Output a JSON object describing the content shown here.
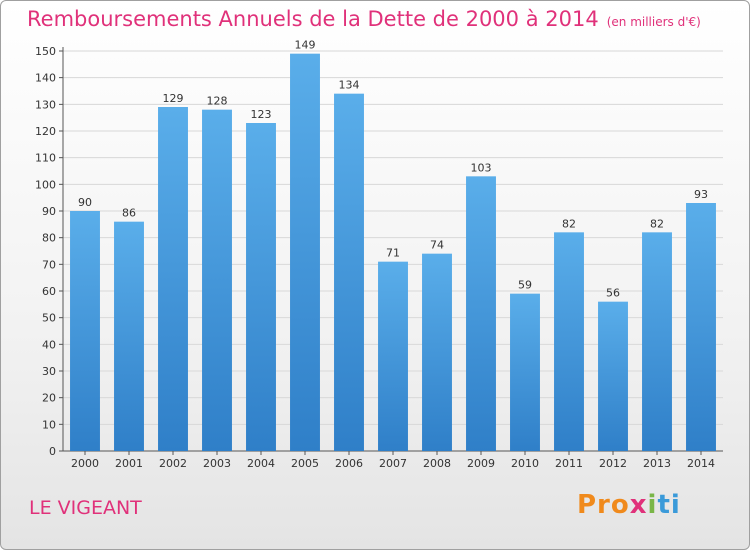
{
  "header": {
    "title": "Remboursements Annuels de la Dette de 2000 à 2014",
    "unit": "(en milliers d'€)"
  },
  "footer": {
    "commune": "LE VIGEANT",
    "logo_letters": [
      "Pro",
      "x",
      "i",
      "ti"
    ]
  },
  "colors": {
    "bar_top": "#5aaeea",
    "bar_bottom": "#2f7fc8",
    "title": "#e0317a",
    "grid": "#d8d8d8"
  },
  "chart_data": {
    "type": "bar",
    "title": "Remboursements Annuels de la Dette de 2000 à 2014",
    "ylabel": "",
    "xlabel": "",
    "ylim": [
      0,
      150
    ],
    "yticks": [
      0,
      10,
      20,
      30,
      40,
      50,
      60,
      70,
      80,
      90,
      100,
      110,
      120,
      130,
      140,
      150
    ],
    "grid": true,
    "categories": [
      "2000",
      "2001",
      "2002",
      "2003",
      "2004",
      "2005",
      "2006",
      "2007",
      "2008",
      "2009",
      "2010",
      "2011",
      "2012",
      "2013",
      "2014"
    ],
    "values": [
      90,
      86,
      129,
      128,
      123,
      149,
      134,
      71,
      74,
      103,
      59,
      82,
      56,
      82,
      93
    ]
  }
}
